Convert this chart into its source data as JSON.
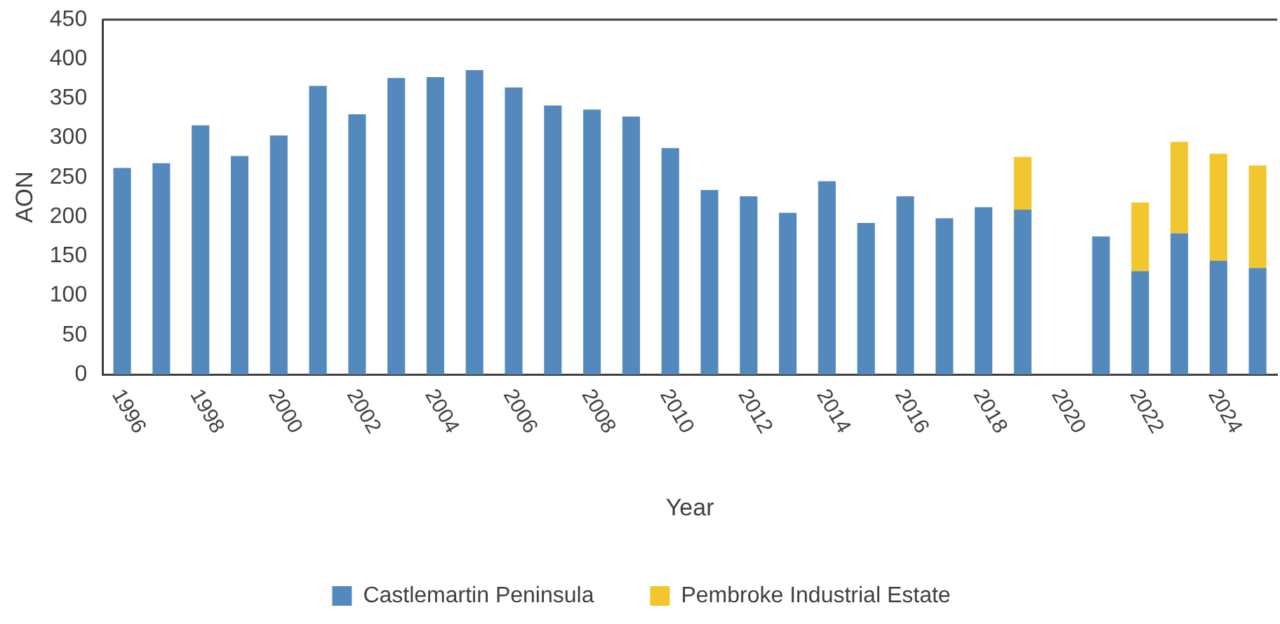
{
  "chart_data": {
    "type": "bar",
    "stacked": true,
    "xlabel": "Year",
    "ylabel": "AON",
    "categories": [
      "1996",
      null,
      "1998",
      null,
      "2000",
      null,
      "2002",
      null,
      "2004",
      null,
      "2006",
      null,
      "2008",
      null,
      "2010",
      null,
      "2012",
      null,
      "2014",
      null,
      "2016",
      null,
      "2018",
      null,
      "2020",
      null,
      "2022",
      null,
      "2024",
      null
    ],
    "series": [
      {
        "name": "Castlemartin Peninsula",
        "color": "#5489bd",
        "values": [
          262,
          268,
          316,
          277,
          303,
          366,
          330,
          376,
          377,
          386,
          364,
          341,
          336,
          327,
          287,
          234,
          226,
          205,
          245,
          192,
          226,
          198,
          212,
          209,
          null,
          175,
          131,
          179,
          144,
          135
        ]
      },
      {
        "name": "Pembroke Industrial Estate",
        "color": "#f2c62e",
        "values": [
          null,
          null,
          null,
          null,
          null,
          null,
          null,
          null,
          null,
          null,
          null,
          null,
          null,
          null,
          null,
          null,
          null,
          null,
          null,
          null,
          null,
          null,
          null,
          67,
          null,
          null,
          87,
          116,
          136,
          130
        ]
      }
    ],
    "ylim": [
      0,
      450
    ],
    "yticks": [
      0,
      50,
      100,
      150,
      200,
      250,
      300,
      350,
      400,
      450
    ],
    "grid": false,
    "legend": "bottom"
  }
}
